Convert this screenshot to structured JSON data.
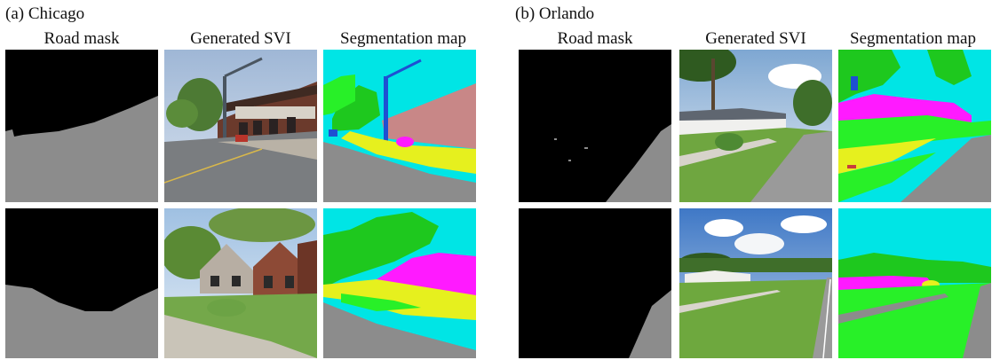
{
  "figure": {
    "panels": [
      {
        "label": "(a) Chicago",
        "columns": [
          "Road mask",
          "Generated SVI",
          "Segmentation map"
        ]
      },
      {
        "label": "(b) Orlando",
        "columns": [
          "Road mask",
          "Generated SVI",
          "Segmentation map"
        ]
      }
    ],
    "colors": {
      "road_mask_background": "#000000",
      "road_mask_road": "#8c8c8c",
      "seg_sky": "#00e5e5",
      "seg_vegetation": "#1ec81e",
      "seg_building": "#c88787",
      "seg_house": "#ff1aff",
      "seg_terrain": "#e6f01e",
      "seg_grass": "#28f028",
      "seg_pole": "#1e50d2",
      "seg_road": "#8c8c8c"
    }
  }
}
